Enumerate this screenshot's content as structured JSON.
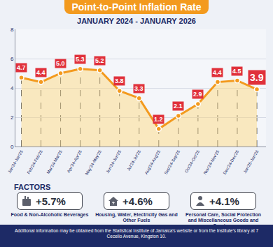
{
  "chart_data": {
    "type": "line",
    "title": "Point-to-Point Inflation Rate",
    "subtitle": "JANUARY 2024 - JANUARY 2026",
    "categories": [
      "Jan'24-Jan'25",
      "Feb'24-Feb'25",
      "Mar'24-Mar'25",
      "Apr'24-Apr'25",
      "May'24-May'25",
      "Jun'24-Jun'25",
      "Jul'24-Jul'25",
      "Aug'24-Aug'25",
      "Sep'24-Sep'25",
      "Oct'24-Oct'25",
      "Nov'24-Nov'25",
      "Dec'24-Dec'25",
      "Jan'25-Jan'26"
    ],
    "values": [
      4.7,
      4.4,
      5.0,
      5.3,
      5.2,
      3.8,
      3.3,
      1.2,
      2.1,
      2.9,
      4.4,
      4.5,
      3.9
    ],
    "value_labels": [
      "4.7",
      "4.4",
      "5.0",
      "5.3",
      "5.2",
      "3.8",
      "3.3",
      "1.2",
      "2.1",
      "2.9",
      "4.4",
      "4.5",
      "3.9"
    ],
    "color": "#f39a1e",
    "ylim": [
      0,
      8
    ],
    "yticks": [
      0,
      2,
      4,
      6,
      8
    ],
    "grid": true,
    "data_labels": true
  },
  "factors": {
    "title": "FACTORS",
    "items": [
      {
        "change": "+5.7%",
        "label": "Food & Non-Alcoholic Beverages"
      },
      {
        "change": "+4.6%",
        "label": "Housing, Water, Electricity Gas and Other Fuels"
      },
      {
        "change": "+4.1%",
        "label": "Personal Care, Social Protection and Miscellaneous Goods and Services"
      }
    ]
  },
  "footer": "Additional information may be obtained from the Statistical Institute of Jamaica's website or from the Institute's library at 7 Cecelio Avenue, Kingston 10."
}
